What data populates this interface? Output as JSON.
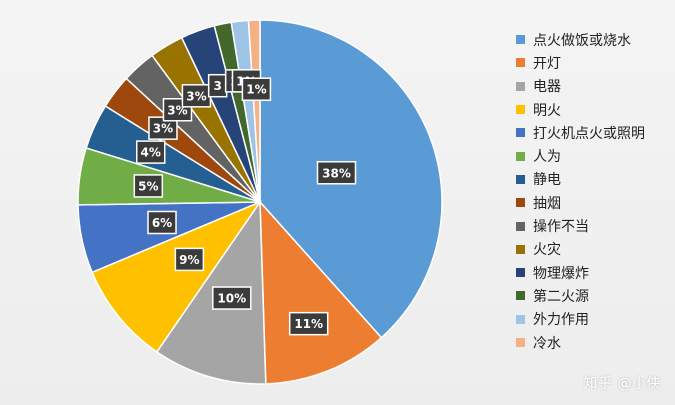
{
  "chart_data": {
    "type": "pie",
    "title": "",
    "legend_position": "right",
    "slices": [
      {
        "name": "点火做饭或烧水",
        "value": 38,
        "label": "38%",
        "color": "#5b9bd5"
      },
      {
        "name": "开灯",
        "value": 11,
        "label": "11%",
        "color": "#ed7d31"
      },
      {
        "name": "电器",
        "value": 10,
        "label": "10%",
        "color": "#a5a5a5"
      },
      {
        "name": "明火",
        "value": 9,
        "label": "9%",
        "color": "#ffc000"
      },
      {
        "name": "打火机点火或照明",
        "value": 6,
        "label": "6%",
        "color": "#4472c4"
      },
      {
        "name": "人为",
        "value": 5,
        "label": "5%",
        "color": "#70ad47"
      },
      {
        "name": "静电",
        "value": 4,
        "label": "4%",
        "color": "#255e91"
      },
      {
        "name": "抽烟",
        "value": 3,
        "label": "3%",
        "color": "#9e480e"
      },
      {
        "name": "操作不当",
        "value": 3,
        "label": "3%",
        "color": "#636363"
      },
      {
        "name": "火灾",
        "value": 3,
        "label": "3%",
        "color": "#997300"
      },
      {
        "name": "物理爆炸",
        "value": 3,
        "label": "3",
        "color": "#264478"
      },
      {
        "name": "第二火源",
        "value": 1.5,
        "label": "2",
        "color": "#43682b"
      },
      {
        "name": "外力作用",
        "value": 1.5,
        "label": "1%",
        "color": "#9dc3e6"
      },
      {
        "name": "冷水",
        "value": 1,
        "label": "1%",
        "color": "#f4b183"
      }
    ]
  },
  "watermark": "知乎 @小侠"
}
